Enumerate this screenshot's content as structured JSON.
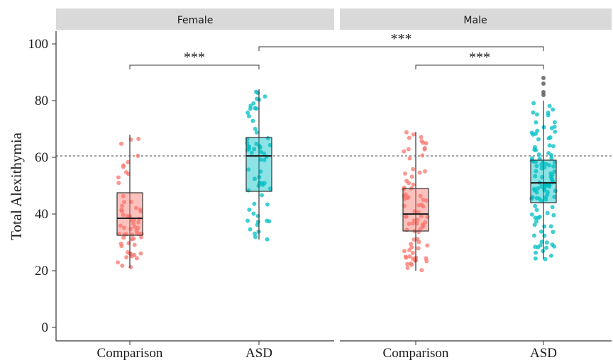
{
  "chart_data": {
    "type": "box",
    "ylabel": "Total Alexithymia",
    "ylim": [
      0,
      100
    ],
    "yticks": [
      0,
      20,
      40,
      60,
      80,
      100
    ],
    "reference_line": 60.5,
    "colors": {
      "Comparison": "#f8766d",
      "ASD": "#00bfc4",
      "strip_bg": "#d9d9d9",
      "outlier": "#555555"
    },
    "panels": [
      {
        "name": "Female",
        "groups": [
          {
            "label": "Comparison",
            "whisker_low": 21,
            "q1": 32.5,
            "median": 38.5,
            "q3": 47.5,
            "whisker_high": 68,
            "outliers": []
          },
          {
            "label": "ASD",
            "whisker_low": 31,
            "q1": 48,
            "median": 60.5,
            "q3": 67,
            "whisker_high": 84,
            "outliers": []
          }
        ]
      },
      {
        "name": "Male",
        "groups": [
          {
            "label": "Comparison",
            "whisker_low": 20,
            "q1": 34,
            "median": 40,
            "q3": 49,
            "whisker_high": 69,
            "outliers": []
          },
          {
            "label": "ASD",
            "whisker_low": 24,
            "q1": 44,
            "median": 51,
            "q3": 59,
            "whisker_high": 80,
            "outliers": [
              82,
              83,
              86,
              88
            ]
          }
        ]
      }
    ],
    "significance": [
      {
        "from": "Female Comparison",
        "to": "Female ASD",
        "label": "***"
      },
      {
        "from": "Female ASD",
        "to": "Male ASD",
        "label": "***"
      },
      {
        "from": "Male Comparison",
        "to": "Male ASD",
        "label": "***"
      }
    ]
  }
}
